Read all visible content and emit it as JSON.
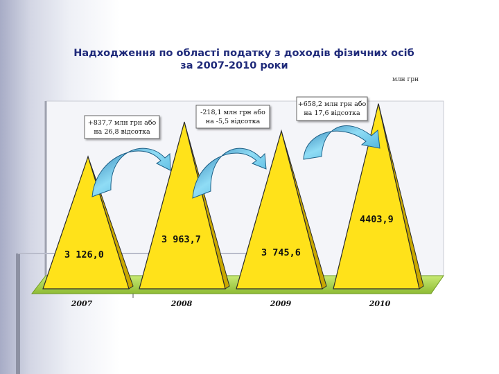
{
  "title_lines": [
    "Надходження по області податку з доходів фізичних осіб",
    "за 2007-2010 роки"
  ],
  "unit": "млн грн",
  "chart_data": {
    "type": "bar",
    "shape": "pyramid",
    "categories": [
      "2007",
      "2008",
      "2009",
      "2010"
    ],
    "values": [
      3126.0,
      3963.7,
      3745.6,
      4403.9
    ],
    "value_labels": [
      "3 126,0",
      "3 963,7",
      "3 745,6",
      "4403,9"
    ],
    "title": "Надходження по області податку з доходів фізичних осіб за 2007-2010 роки",
    "ylabel": "млн грн",
    "ylim": [
      0,
      4900
    ],
    "annotations": [
      {
        "from": "2007",
        "to": "2008",
        "lines": [
          "+837,7 млн грн або",
          "на 26,8 відсотка"
        ]
      },
      {
        "from": "2008",
        "to": "2009",
        "lines": [
          "-218,1 млн грн або",
          "на -5,5 відсотка"
        ]
      },
      {
        "from": "2009",
        "to": "2010",
        "lines": [
          "+658,2 млн грн або",
          "на 17,6 відсотка"
        ]
      }
    ]
  },
  "colors": {
    "pyramid_fill": "#ffe21a",
    "pyramid_shade": "#c9a800",
    "floor": "#b5dc5a",
    "arrow": "#5ec4ea",
    "title": "#1f2a7a"
  }
}
